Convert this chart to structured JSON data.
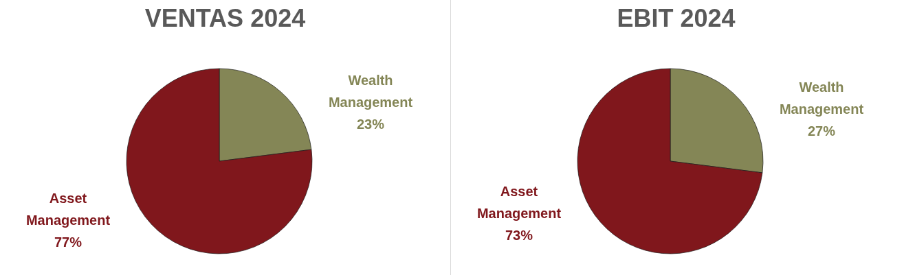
{
  "chart_data": [
    {
      "type": "pie",
      "title": "VENTAS 2024",
      "categories": [
        "Wealth Management",
        "Asset Management"
      ],
      "values": [
        23,
        77
      ],
      "value_labels": [
        "23%",
        "77%"
      ],
      "colors": [
        "#848656",
        "#80171c"
      ]
    },
    {
      "type": "pie",
      "title": "EBIT 2024",
      "categories": [
        "Wealth Management",
        "Asset Management"
      ],
      "values": [
        27,
        73
      ],
      "value_labels": [
        "27%",
        "73%"
      ],
      "colors": [
        "#848656",
        "#80171c"
      ]
    }
  ]
}
